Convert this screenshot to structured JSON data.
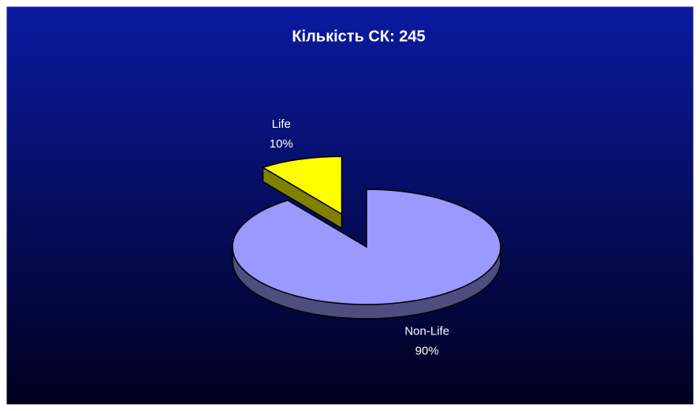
{
  "chart_data": {
    "type": "pie",
    "title": "Кількість СК: 245",
    "categories": [
      "Life",
      "Non-Life"
    ],
    "values": [
      10,
      90
    ],
    "value_labels": [
      "10%",
      "90%"
    ],
    "colors": [
      "#ffff00",
      "#9999ff"
    ]
  }
}
